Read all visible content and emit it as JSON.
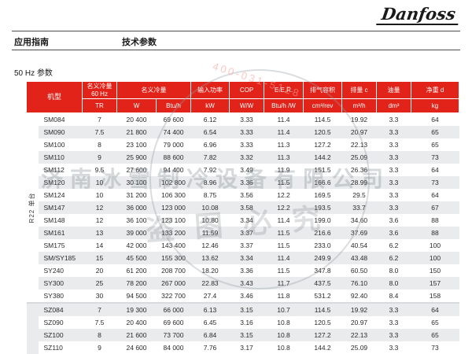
{
  "page": {
    "logo": "Danfoss",
    "breadcrumb_left": "应用指南",
    "breadcrumb_right": "技术参数",
    "section_title": "50 Hz 参数"
  },
  "watermark": {
    "company": "济南冰雪制冷设备有限公司",
    "stamp": "盗图必究",
    "phone": "400-031-5128"
  },
  "table": {
    "header": {
      "model": "机型",
      "capacity_60hz_line1": "名义冷量",
      "capacity_60hz_line2": "60 Hz",
      "capacity": "名义冷量",
      "input_power": "输入功率",
      "cop": "COP",
      "eer": "E.E.R.",
      "displacement_volume": "排气容积",
      "displacement": "排量 c",
      "oil": "油量",
      "weight": "净重 d",
      "units": [
        "TR",
        "W",
        "Btu/h",
        "kW",
        "W/W",
        "Btu/h /W",
        "cm³/rev",
        "m³/h",
        "dm³",
        "kg"
      ]
    },
    "groups": [
      {
        "label": "R22 单台",
        "rows": [
          [
            "SM084",
            "7",
            "20 400",
            "69 600",
            "6.12",
            "3.33",
            "11.4",
            "114.5",
            "19.92",
            "3.3",
            "64"
          ],
          [
            "SM090",
            "7.5",
            "21 800",
            "74 400",
            "6.54",
            "3.33",
            "11.4",
            "120.5",
            "20.97",
            "3.3",
            "65"
          ],
          [
            "SM100",
            "8",
            "23 100",
            "79 000",
            "6.96",
            "3.33",
            "11.3",
            "127.2",
            "22.13",
            "3.3",
            "65"
          ],
          [
            "SM110",
            "9",
            "25 900",
            "88 600",
            "7.82",
            "3.32",
            "11.3",
            "144.2",
            "25.09",
            "3.3",
            "73"
          ],
          [
            "SM112",
            "9.5",
            "27 600",
            "94 400",
            "7.92",
            "3.49",
            "11.9",
            "151.5",
            "26.36",
            "3.3",
            "64"
          ],
          [
            "SM120",
            "10",
            "30 100",
            "102 800",
            "8.96",
            "3.36",
            "11.5",
            "166.6",
            "28.99",
            "3.3",
            "73"
          ],
          [
            "SM124",
            "10",
            "31 200",
            "106 300",
            "8.75",
            "3.56",
            "12.2",
            "169.5",
            "29.5",
            "3.3",
            "64"
          ],
          [
            "SM147",
            "12",
            "36 000",
            "123 000",
            "10.08",
            "3.58",
            "12.2",
            "193.5",
            "33.7",
            "3.3",
            "67"
          ],
          [
            "SM148",
            "12",
            "36 100",
            "123 100",
            "10.80",
            "3.34",
            "11.4",
            "199.0",
            "34.60",
            "3.6",
            "88"
          ],
          [
            "SM161",
            "13",
            "39 000",
            "133 200",
            "11.59",
            "3.37",
            "11.5",
            "216.6",
            "37.69",
            "3.6",
            "88"
          ],
          [
            "SM175",
            "14",
            "42 000",
            "143 400",
            "12.46",
            "3.37",
            "11.5",
            "233.0",
            "40.54",
            "6.2",
            "100"
          ],
          [
            "SM/SY185",
            "15",
            "45 500",
            "155 300",
            "13.62",
            "3.34",
            "11.4",
            "249.9",
            "43.48",
            "6.2",
            "100"
          ],
          [
            "SY240",
            "20",
            "61 200",
            "208 700",
            "18.20",
            "3.36",
            "11.5",
            "347.8",
            "60.50",
            "8.0",
            "150"
          ],
          [
            "SY300",
            "25",
            "78 200",
            "267 000",
            "22.83",
            "3.43",
            "11.7",
            "437.5",
            "76.10",
            "8.0",
            "157"
          ],
          [
            "SY380",
            "30",
            "94 500",
            "322 700",
            "27.4",
            "3.46",
            "11.8",
            "531.2",
            "92.40",
            "8.4",
            "158"
          ]
        ]
      },
      {
        "label": "",
        "rows": [
          [
            "SZ084",
            "7",
            "19 300",
            "66 000",
            "6.13",
            "3.15",
            "10.7",
            "114.5",
            "19.92",
            "3.3",
            "64"
          ],
          [
            "SZ090",
            "7.5",
            "20 400",
            "69 600",
            "6.45",
            "3.16",
            "10.8",
            "120.5",
            "20.97",
            "3.3",
            "65"
          ],
          [
            "SZ100",
            "8",
            "21 600",
            "73 700",
            "6.84",
            "3.15",
            "10.8",
            "127.2",
            "22.13",
            "3.3",
            "65"
          ],
          [
            "SZ110",
            "9",
            "24 600",
            "84 000",
            "7.76",
            "3.17",
            "10.8",
            "144.2",
            "25.09",
            "3.3",
            "73"
          ]
        ]
      }
    ]
  }
}
